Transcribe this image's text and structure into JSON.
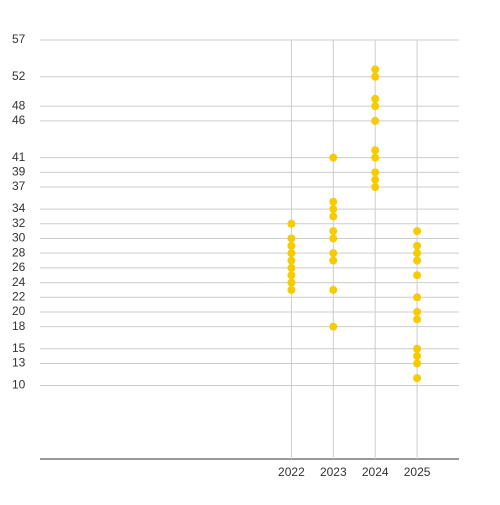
{
  "chart_data": {
    "type": "scatter",
    "x": [
      2022,
      2022,
      2022,
      2022,
      2022,
      2022,
      2022,
      2022,
      2022,
      2023,
      2023,
      2023,
      2023,
      2023,
      2023,
      2023,
      2023,
      2023,
      2023,
      2024,
      2024,
      2024,
      2024,
      2024,
      2024,
      2024,
      2024,
      2024,
      2024,
      2025,
      2025,
      2025,
      2025,
      2025,
      2025,
      2025,
      2025,
      2025,
      2025,
      2025,
      2025
    ],
    "values": [
      32,
      30,
      29,
      28,
      27,
      26,
      25,
      24,
      23,
      41,
      35,
      34,
      33,
      31,
      30,
      28,
      27,
      23,
      18,
      53,
      52,
      49,
      48,
      46,
      42,
      41,
      39,
      38,
      37,
      31,
      29,
      28,
      27,
      25,
      22,
      20,
      19,
      15,
      14,
      13,
      11
    ],
    "color": "#f7cb00",
    "xlim": [
      2016,
      2026
    ],
    "xticks": [
      2022,
      2023,
      2024,
      2025
    ],
    "ylim": [
      0,
      57
    ],
    "yticks": [
      10,
      13,
      15,
      18,
      20,
      22,
      24,
      26,
      28,
      30,
      32,
      34,
      37,
      39,
      41,
      46,
      48,
      52,
      57
    ],
    "grid": true
  }
}
